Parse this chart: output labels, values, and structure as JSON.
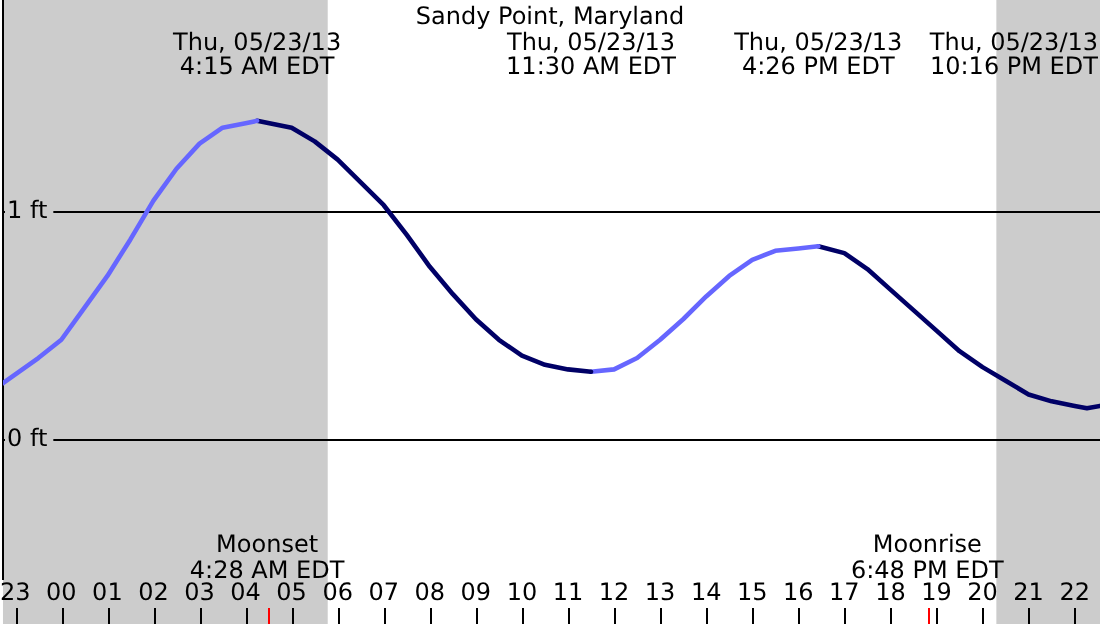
{
  "chart_data": {
    "type": "line",
    "title": "Sandy Point, Maryland",
    "series": [
      {
        "color": "#6666ff",
        "x": [
          "--05-22T22:44",
          "--05-22T23:30",
          "--05-23T00:00",
          "--05-23T00:30",
          "--05-23T01:00",
          "--05-23T01:30",
          "--05-23T02:00",
          "--05-23T02:30",
          "--05-23T03:00",
          "--05-23T03:30",
          "--05-23T04:00",
          "--05-23T04:15"
        ],
        "values": [
          0.25,
          0.36,
          0.44,
          0.58,
          0.72,
          0.88,
          1.05,
          1.19,
          1.3,
          1.37,
          1.39,
          1.4
        ]
      },
      {
        "color": "#000066",
        "x": [
          "--05-23T04:15",
          "--05-23T05:00",
          "--05-23T05:30",
          "--05-23T06:00",
          "--05-23T06:30",
          "--05-23T07:00",
          "--05-23T07:30",
          "--05-23T08:00",
          "--05-23T08:30",
          "--05-23T09:00",
          "--05-23T09:30",
          "--05-23T10:00",
          "--05-23T10:30",
          "--05-23T11:00",
          "--05-23T11:30"
        ],
        "values": [
          1.4,
          1.37,
          1.31,
          1.23,
          1.13,
          1.03,
          0.9,
          0.76,
          0.64,
          0.53,
          0.44,
          0.37,
          0.33,
          0.31,
          0.3
        ]
      },
      {
        "color": "#6666ff",
        "x": [
          "--05-23T11:30",
          "--05-23T12:00",
          "--05-23T12:30",
          "--05-23T13:00",
          "--05-23T13:30",
          "--05-23T14:00",
          "--05-23T14:30",
          "--05-23T15:00",
          "--05-23T15:30",
          "--05-23T16:00",
          "--05-23T16:26"
        ],
        "values": [
          0.3,
          0.31,
          0.36,
          0.44,
          0.53,
          0.63,
          0.72,
          0.79,
          0.83,
          0.84,
          0.85
        ]
      },
      {
        "color": "#000066",
        "x": [
          "--05-23T16:26",
          "--05-23T17:00",
          "--05-23T17:30",
          "--05-23T18:00",
          "--05-23T18:30",
          "--05-23T19:00",
          "--05-23T19:30",
          "--05-23T20:00",
          "--05-23T20:30",
          "--05-23T21:00",
          "--05-23T21:30",
          "--05-23T22:00",
          "--05-23T22:16",
          "--05-23T22:33"
        ],
        "values": [
          0.85,
          0.82,
          0.75,
          0.66,
          0.57,
          0.48,
          0.39,
          0.32,
          0.26,
          0.2,
          0.17,
          0.15,
          0.14,
          0.15
        ]
      }
    ],
    "xlim": [
      "--05-22T22:44",
      "--05-23T22:33"
    ],
    "xticks": [
      {
        "value": "--05-22T23:00",
        "label": "23"
      },
      {
        "value": "--05-23T00:00",
        "label": "00"
      },
      {
        "value": "--05-23T01:00",
        "label": "01"
      },
      {
        "value": "--05-23T02:00",
        "label": "02"
      },
      {
        "value": "--05-23T03:00",
        "label": "03"
      },
      {
        "value": "--05-23T04:00",
        "label": "04"
      },
      {
        "value": "--05-23T05:00",
        "label": "05"
      },
      {
        "value": "--05-23T06:00",
        "label": "06"
      },
      {
        "value": "--05-23T07:00",
        "label": "07"
      },
      {
        "value": "--05-23T08:00",
        "label": "08"
      },
      {
        "value": "--05-23T09:00",
        "label": "09"
      },
      {
        "value": "--05-23T10:00",
        "label": "10"
      },
      {
        "value": "--05-23T11:00",
        "label": "11"
      },
      {
        "value": "--05-23T12:00",
        "label": "12"
      },
      {
        "value": "--05-23T13:00",
        "label": "13"
      },
      {
        "value": "--05-23T14:00",
        "label": "14"
      },
      {
        "value": "--05-23T15:00",
        "label": "15"
      },
      {
        "value": "--05-23T16:00",
        "label": "16"
      },
      {
        "value": "--05-23T17:00",
        "label": "17"
      },
      {
        "value": "--05-23T18:00",
        "label": "18"
      },
      {
        "value": "--05-23T19:00",
        "label": "19"
      },
      {
        "value": "--05-23T20:00",
        "label": "20"
      },
      {
        "value": "--05-23T21:00",
        "label": "21"
      },
      {
        "value": "--05-23T22:00",
        "label": "22"
      }
    ],
    "ylim": [
      -0.61,
      1.93
    ],
    "yticks": [
      {
        "value": 0,
        "label": "0 ft"
      },
      {
        "value": 1,
        "label": "1 ft"
      }
    ],
    "grid": "y",
    "legend": false,
    "marker": "none",
    "line_style": "solid",
    "bands": [
      {
        "axis": "x",
        "from": "--05-22T22:44",
        "to": "--05-23T05:47",
        "color": "#cccccc"
      },
      {
        "axis": "x",
        "from": "--05-23T20:18",
        "to": "--05-23T22:33",
        "color": "#cccccc"
      }
    ],
    "ref_lines": [
      {
        "axis": "x",
        "value": "--05-23T04:28",
        "label": "Moonset\n4:28 AM EDT",
        "color": "#ff0000"
      },
      {
        "axis": "x",
        "value": "--05-23T18:48",
        "label": "Moonrise\n6:48 PM EDT",
        "color": "#ff0000"
      }
    ],
    "annotations": [
      "Thu, 05/23/13\n4:15 AM EDT",
      "Thu, 05/23/13\n11:30 AM EDT",
      "Thu, 05/23/13\n4:26 PM EDT",
      "Thu, 05/23/13\n10:16 PM EDT"
    ]
  }
}
